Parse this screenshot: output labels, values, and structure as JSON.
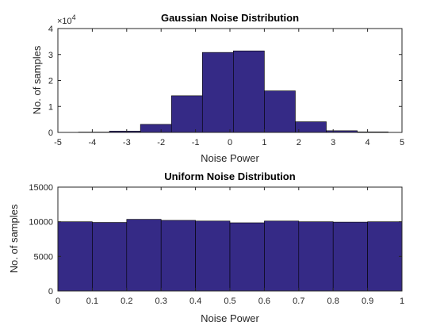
{
  "chart_data": [
    {
      "type": "bar",
      "title": "Gaussian Noise Distribution",
      "xlabel": "Noise Power",
      "ylabel": "No. of samples",
      "xlim": [
        -5,
        5
      ],
      "ylim": [
        0,
        40000
      ],
      "x_ticks": [
        "-5",
        "-4",
        "-3",
        "-2",
        "-1",
        "0",
        "1",
        "2",
        "3",
        "4",
        "5"
      ],
      "y_ticks": [
        "0",
        "1",
        "2",
        "3",
        "4"
      ],
      "y_exponent_label": "×10",
      "y_exponent_power": "4",
      "bin_edges": [
        -4.4,
        -3.5,
        -2.6,
        -1.7,
        -0.8,
        0.1,
        1.0,
        1.9,
        2.8,
        3.7,
        4.6
      ],
      "values": [
        130,
        500,
        3100,
        14100,
        30800,
        31400,
        16000,
        4100,
        650,
        200
      ],
      "bar_color": "#352a86",
      "grid": false
    },
    {
      "type": "bar",
      "title": "Uniform Noise Distribution",
      "xlabel": "Noise Power",
      "ylabel": "No. of samples",
      "xlim": [
        0,
        1
      ],
      "ylim": [
        0,
        15000
      ],
      "x_ticks": [
        "0",
        "0.1",
        "0.2",
        "0.3",
        "0.4",
        "0.5",
        "0.6",
        "0.7",
        "0.8",
        "0.9",
        "1"
      ],
      "y_ticks": [
        "0",
        "5000",
        "10000",
        "15000"
      ],
      "bin_edges": [
        0,
        0.1,
        0.2,
        0.3,
        0.4,
        0.5,
        0.6,
        0.7,
        0.8,
        0.9,
        1.0
      ],
      "values": [
        10000,
        9900,
        10350,
        10200,
        10100,
        9850,
        10100,
        10000,
        9950,
        10000
      ],
      "bar_color": "#352a86",
      "grid": false
    }
  ]
}
